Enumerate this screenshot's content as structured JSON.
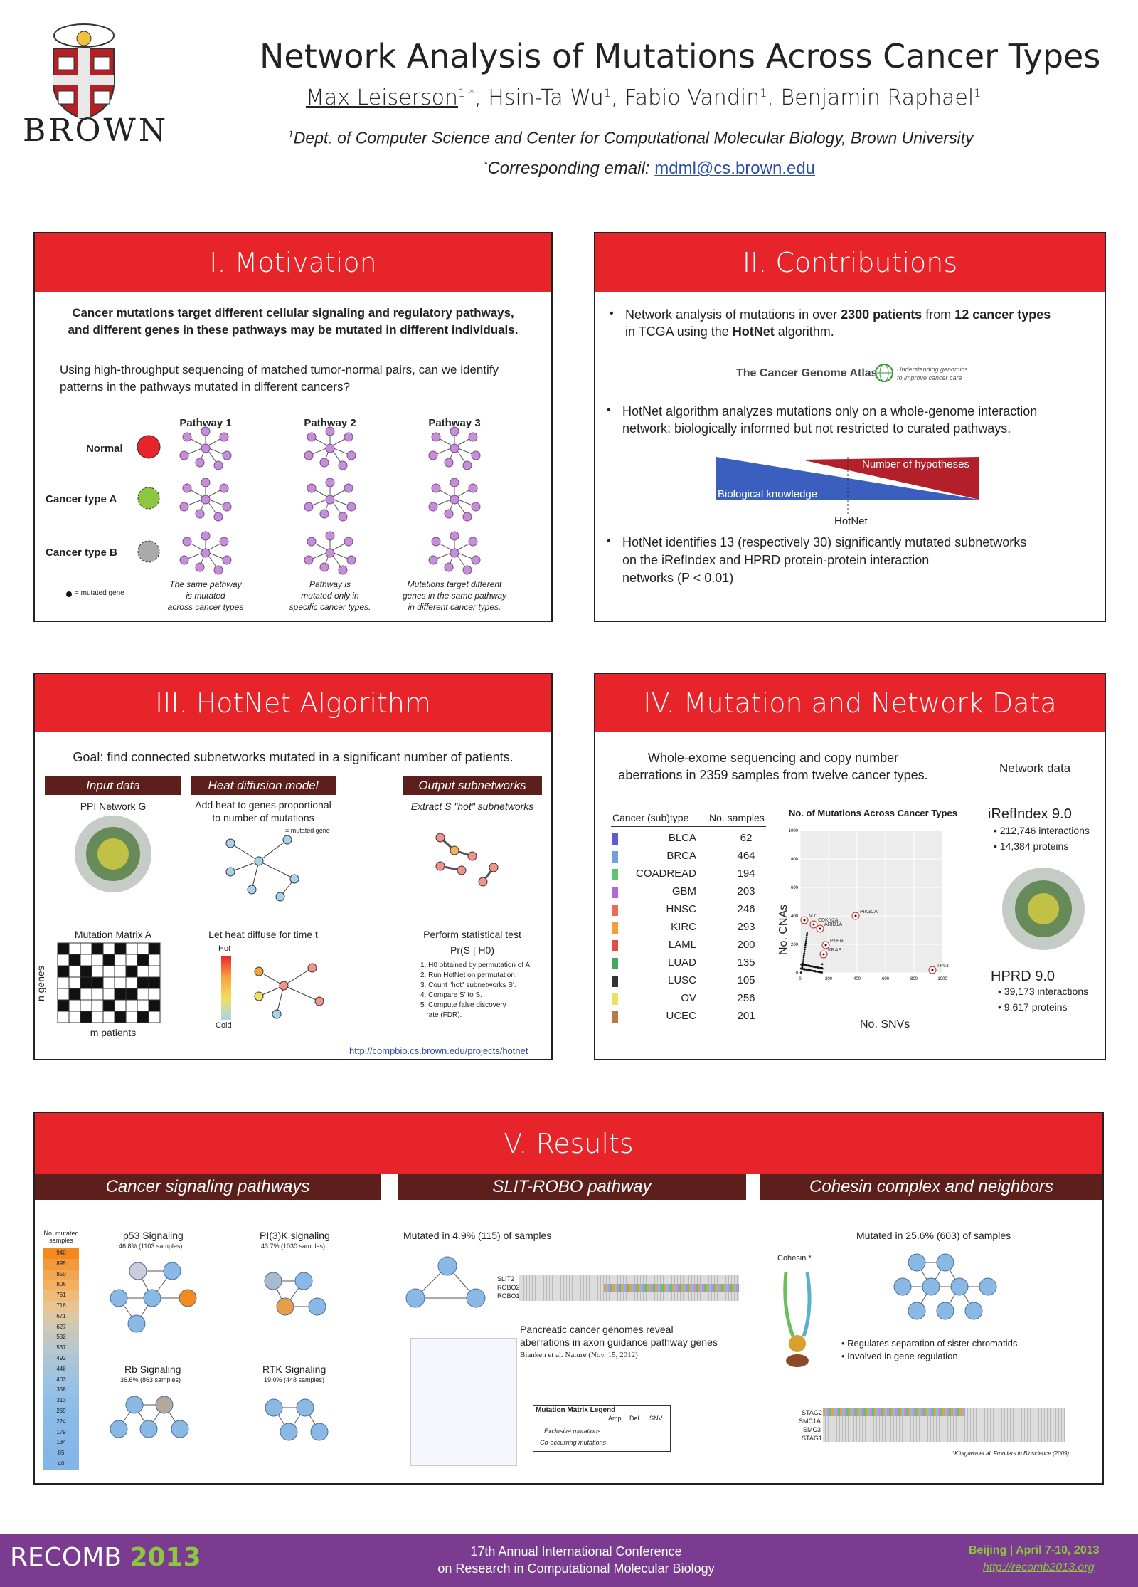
{
  "header": {
    "title": "Network Analysis of Mutations Across Cancer Types",
    "authors": [
      {
        "name": "Max Leiserson",
        "sup": "1,*"
      },
      {
        "name": ", Hsin-Ta Wu",
        "sup": "1"
      },
      {
        "name": ", Fabio Vandin",
        "sup": "1"
      },
      {
        "name": ", Benjamin Raphael",
        "sup": "1"
      }
    ],
    "affil_sup": "1",
    "affil": "Dept. of Computer Science and Center for Computational Molecular Biology, Brown University",
    "corr_sup": "*",
    "corr_label": "Corresponding email: ",
    "email": "mdml@cs.brown.edu",
    "logo": "BROWN"
  },
  "motivation": {
    "title": "I. Motivation",
    "bold1": "Cancer mutations target different cellular signaling and regulatory pathways,",
    "bold2": "and different genes in these pathways may be mutated in different individuals.",
    "q1": "Using high-throughput sequencing of matched tumor-normal pairs, can we identify",
    "q2": "patterns in the pathways mutated in different cancers?",
    "cols": [
      "Pathway 1",
      "Pathway 2",
      "Pathway 3"
    ],
    "rows": [
      "Normal",
      "Cancer type A",
      "Cancer type B"
    ],
    "legend": "= mutated gene",
    "cap1": [
      "The same pathway",
      "is mutated",
      "across cancer types"
    ],
    "cap2": [
      "Pathway is",
      "mutated only in",
      "specific cancer types."
    ],
    "cap3": [
      "Mutations target different",
      "genes in the same pathway",
      "in different cancer types."
    ]
  },
  "contrib": {
    "title": "II. Contributions",
    "b1a": "Network analysis of mutations in over ",
    "b1b": "2300 patients",
    "b1c": " from ",
    "b1d": "12 cancer types",
    "b1e": "in TCGA using the ",
    "b1f": "HotNet",
    "b1g": " algorithm.",
    "tcga": "The Cancer Genome Atlas",
    "tcga_tag1": "Understanding genomics",
    "tcga_tag2": "to improve cancer care",
    "b2a": "HotNet algorithm analyzes mutations only on a whole-genome interaction",
    "b2b": "network: biologically informed but not restricted to curated pathways.",
    "hyp": "Number of hypotheses",
    "bio": "Biological knowledge",
    "hotnet": "HotNet",
    "b3a": "HotNet identifies 13 (respectively 30) significantly mutated subnetworks",
    "b3b": "on the iRefIndex and HPRD protein-protein interaction",
    "b3c": "networks (P < 0.01)"
  },
  "hotnet": {
    "title": "III. HotNet Algorithm",
    "goal": "Goal: find connected subnetworks mutated in a significant number of patients.",
    "s1": "Input data",
    "s2": "Heat diffusion model",
    "s3": "Output subnetworks",
    "ppi": "PPI Network G",
    "heat1": "Add heat to genes proportional",
    "heat2": "to number of mutations",
    "mut": "= mutated gene",
    "extract": "Extract S \"hot\" subnetworks",
    "matrix": "Mutation Matrix A",
    "ngenes": "n genes",
    "mpat": "m patients",
    "diffuse": "Let heat diffuse for time t",
    "hot": "Hot",
    "cold": "Cold",
    "test": "Perform statistical test",
    "pr": "Pr(S | H0)",
    "steps": [
      "1. H0 obtained by permutation of A.",
      "2. Run HotNet on permutation.",
      "3. Count \"hot\" subnetworks S'.",
      "4. Compare S' to S.",
      "5. Compute false discovery",
      "   rate (FDR)."
    ],
    "url": "http://compbio.cs.brown.edu/projects/hotnet"
  },
  "data": {
    "title": "IV. Mutation and Network Data",
    "intro1": "Whole-exome sequencing and copy number",
    "intro2": "aberrations in 2359 samples from twelve cancer types.",
    "col1": "Cancer (sub)type",
    "col2": "No. samples",
    "rows": [
      [
        "BLCA",
        "62",
        "#5b5bd6"
      ],
      [
        "BRCA",
        "464",
        "#6fa0e0"
      ],
      [
        "COADREAD",
        "194",
        "#5fc46f"
      ],
      [
        "GBM",
        "203",
        "#b36ad0"
      ],
      [
        "HNSC",
        "246",
        "#f06a5a"
      ],
      [
        "KIRC",
        "293",
        "#f59b3c"
      ],
      [
        "LAML",
        "200",
        "#e24b4b"
      ],
      [
        "LUAD",
        "135",
        "#3fa85a"
      ],
      [
        "LUSC",
        "105",
        "#333333"
      ],
      [
        "OV",
        "256",
        "#f0e060"
      ],
      [
        "UCEC",
        "201",
        "#b97a4a"
      ]
    ],
    "net_title": "Network data",
    "iref": "iRefIndex 9.0",
    "iref1": "212,746 interactions",
    "iref2": "14,384 proteins",
    "hprd": "HPRD 9.0",
    "hprd1": "39,173 interactions",
    "hprd2": "9,617 proteins"
  },
  "chart_data": {
    "type": "scatter",
    "title": "No. of Mutations Across Cancer Types",
    "xlabel": "No. SNVs",
    "ylabel": "No. CNAs",
    "xticks": [
      "0",
      "200",
      "400",
      "600",
      "800",
      "1000"
    ],
    "yticks": [
      "0",
      "200",
      "400",
      "600",
      "800",
      "1000"
    ],
    "labeled": [
      {
        "label": "PIK3CA",
        "x": 390,
        "y": 400
      },
      {
        "label": "MYC",
        "x": 30,
        "y": 370
      },
      {
        "label": "CDKN2A",
        "x": 95,
        "y": 340
      },
      {
        "label": "ARID1A",
        "x": 140,
        "y": 310
      },
      {
        "label": "PTEN",
        "x": 180,
        "y": 195
      },
      {
        "label": "KRAS",
        "x": 165,
        "y": 130
      },
      {
        "label": "TP53",
        "x": 930,
        "y": 20
      }
    ]
  },
  "results": {
    "title": "V. Results",
    "s1": "Cancer signaling pathways",
    "s2": "SLIT-ROBO pathway",
    "s3": "Cohesin complex and neighbors",
    "legend_title": [
      "No. mutated",
      "samples"
    ],
    "legend_vals": [
      "940",
      "895",
      "850",
      "806",
      "761",
      "716",
      "671",
      "627",
      "582",
      "537",
      "492",
      "448",
      "403",
      "358",
      "313",
      "269",
      "224",
      "179",
      "134",
      "85",
      "40"
    ],
    "p53": "p53 Signaling",
    "p53s": "46.8% (1103 samples)",
    "pi3k": "PI(3)K signaling",
    "pi3ks": "43.7% (1030 samples)",
    "rb": "Rb Signaling",
    "rbs": "36.6% (863 samples)",
    "rtk": "RTK Signaling",
    "rtks": "19.0% (448 samples)",
    "slit_mut": "Mutated in 4.9% (115) of samples",
    "slit_rows": [
      "SLIT2",
      "ROBO2",
      "ROBO1"
    ],
    "panc1": "Pancreatic cancer genomes reveal",
    "panc2": "aberrations in axon guidance pathway genes",
    "panc3": "Bianken et al. Nature (Nov. 15, 2012)",
    "mml": "Mutation Matrix Legend",
    "mml_cols": [
      "Amp",
      "Del",
      "SNV"
    ],
    "mml_r1": "Exclusive mutations",
    "mml_r2": "Co-occurring mutations",
    "coh_mut": "Mutated in 25.6% (603) of samples",
    "cohesin": "Cohesin *",
    "coh_b1": "Regulates separation of sister chromatids",
    "coh_b2": "Involved in gene regulation",
    "coh_rows": [
      "STAG2",
      "SMC1A",
      "SMC3",
      "STAG1"
    ],
    "coh_cite": "*Kitagawa et al. Frontiers in Bioscience (2009)"
  },
  "footer": {
    "recomb": "RECOMB",
    "year": "2013",
    "conf1": "17th Annual International Conference",
    "conf2": "on Research in Computational Molecular Biology",
    "where": "Beijing | April 7-10, 2013",
    "url": "http://recomb2013.org"
  },
  "colors": {
    "red": "#e8242b",
    "maroon": "#5c1f1b",
    "purple": "#7a3b91",
    "green": "#8dc63f"
  }
}
